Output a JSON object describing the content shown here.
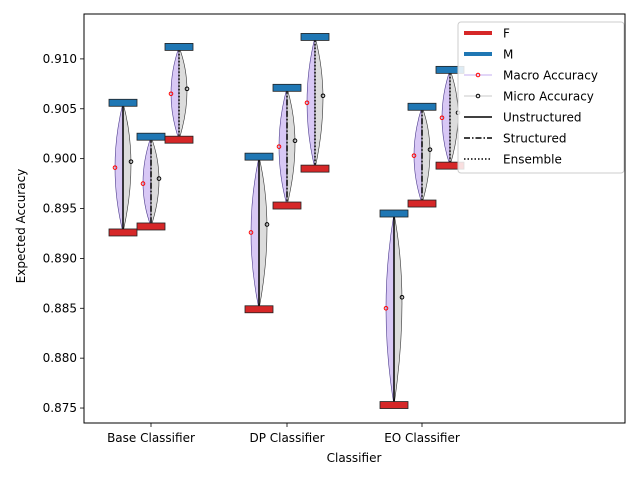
{
  "chart_data": {
    "type": "violin-range",
    "xlabel": "Classifier",
    "ylabel": "Expected Accuracy",
    "categories": [
      "Base Classifier",
      "DP Classifier",
      "EO Classifier"
    ],
    "ylim": [
      0.8735,
      0.9145
    ],
    "yticks": [
      0.875,
      0.88,
      0.885,
      0.89,
      0.895,
      0.9,
      0.905,
      0.91
    ],
    "ytick_labels": [
      "0.875",
      "0.880",
      "0.885",
      "0.890",
      "0.895",
      "0.900",
      "0.905",
      "0.910"
    ],
    "variants": [
      "Unstructured",
      "Structured",
      "Ensemble"
    ],
    "groups": [
      {
        "category": "Base Classifier",
        "variant": "Unstructured",
        "F": 0.8926,
        "M": 0.9056,
        "macro": 0.8991,
        "micro": 0.8997
      },
      {
        "category": "Base Classifier",
        "variant": "Structured",
        "F": 0.8932,
        "M": 0.9022,
        "macro": 0.8975,
        "micro": 0.898
      },
      {
        "category": "Base Classifier",
        "variant": "Ensemble",
        "F": 0.9019,
        "M": 0.9112,
        "macro": 0.9065,
        "micro": 0.907
      },
      {
        "category": "DP Classifier",
        "variant": "Unstructured",
        "F": 0.8849,
        "M": 0.9002,
        "macro": 0.8926,
        "micro": 0.8934
      },
      {
        "category": "DP Classifier",
        "variant": "Structured",
        "F": 0.8953,
        "M": 0.9071,
        "macro": 0.9012,
        "micro": 0.9018
      },
      {
        "category": "DP Classifier",
        "variant": "Ensemble",
        "F": 0.899,
        "M": 0.9122,
        "macro": 0.9056,
        "micro": 0.9063
      },
      {
        "category": "EO Classifier",
        "variant": "Unstructured",
        "F": 0.8753,
        "M": 0.8945,
        "macro": 0.885,
        "micro": 0.8861
      },
      {
        "category": "EO Classifier",
        "variant": "Structured",
        "F": 0.8955,
        "M": 0.9052,
        "macro": 0.9003,
        "micro": 0.9009
      },
      {
        "category": "EO Classifier",
        "variant": "Ensemble",
        "F": 0.8993,
        "M": 0.9089,
        "macro": 0.9041,
        "micro": 0.9046
      }
    ],
    "legend": {
      "position": "top-right",
      "entries": [
        "F",
        "M",
        "Macro Accuracy",
        "Micro Accuracy",
        "Unstructured",
        "Structured",
        "Ensemble"
      ]
    },
    "colors": {
      "F": "#d62728",
      "M": "#1f77b4",
      "macro_fill": "#d8c8f5",
      "micro_fill": "#dcdcdc",
      "macro_marker": "#ff0000",
      "micro_marker": "#000000"
    },
    "grid": false
  }
}
